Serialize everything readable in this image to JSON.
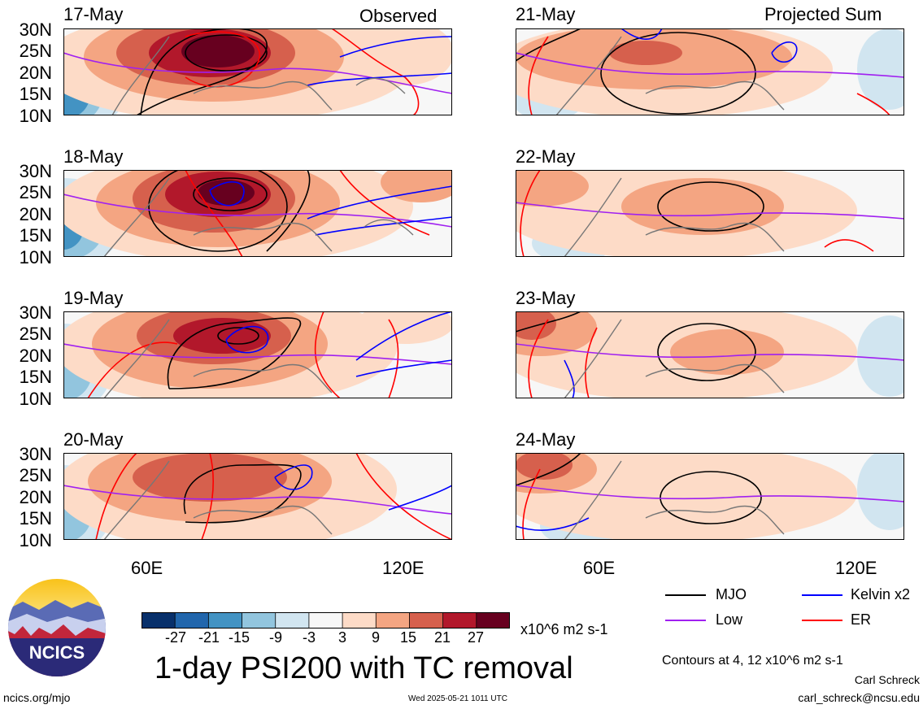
{
  "header": {
    "left_title": "Observed",
    "right_title": "Projected Sum"
  },
  "lat_labels": [
    "30N",
    "25N",
    "20N",
    "15N",
    "10N"
  ],
  "lon_labels": [
    "60E",
    "120E"
  ],
  "panels": {
    "left": [
      "17-May",
      "18-May",
      "19-May",
      "20-May"
    ],
    "right": [
      "21-May",
      "22-May",
      "23-May",
      "24-May"
    ]
  },
  "colorbar": {
    "ticks": [
      "-27",
      "-21",
      "-15",
      "-9",
      "-3",
      "3",
      "9",
      "15",
      "21",
      "27"
    ],
    "units": "x10^6 m2 s-1",
    "colors": [
      "#08306b",
      "#2166ac",
      "#4393c3",
      "#92c5de",
      "#d1e5f0",
      "#f7f7f7",
      "#fddbc7",
      "#f4a582",
      "#d6604d",
      "#b2182b",
      "#67001f"
    ]
  },
  "title": "1-day PSI200 with TC removal",
  "legend": {
    "mjo": {
      "label": "MJO",
      "color": "#000000"
    },
    "kelvin": {
      "label": "Kelvin x2",
      "color": "#0000ff"
    },
    "low": {
      "label": "Low",
      "color": "#a020f0"
    },
    "er": {
      "label": "ER",
      "color": "#ff0000"
    }
  },
  "contours_note": "Contours at 4, 12 x10^6 m2 s-1",
  "author": "Carl Schreck",
  "email": "carl_schreck@ncsu.edu",
  "site": "ncics.org/mjo",
  "timestamp": "Wed 2025-05-21 1011 UTC",
  "logo_text": "NCICS"
}
